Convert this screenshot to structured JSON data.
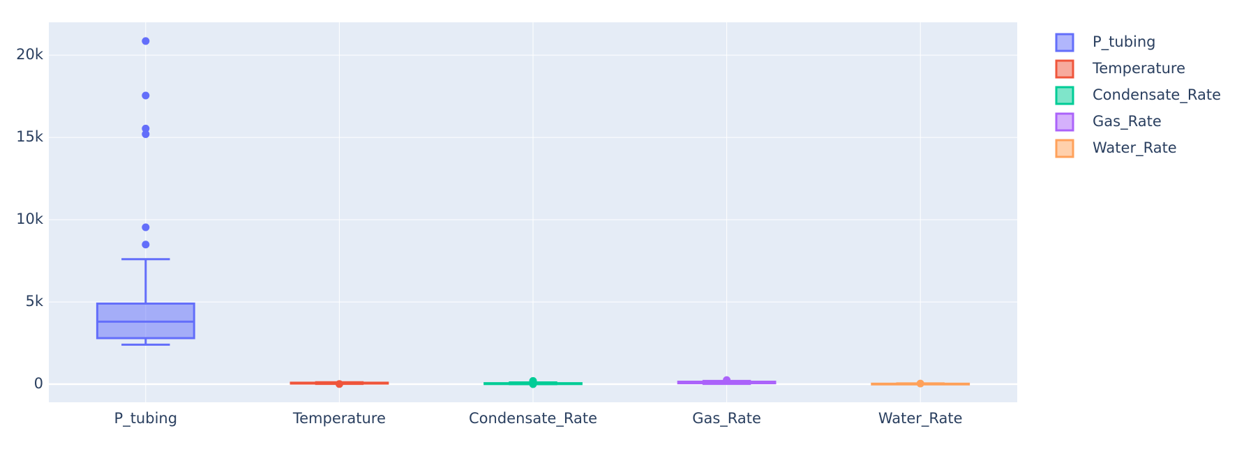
{
  "chart_data": {
    "type": "box",
    "categories": [
      "P_tubing",
      "Temperature",
      "Condensate_Rate",
      "Gas_Rate",
      "Water_Rate"
    ],
    "series": [
      {
        "name": "P_tubing",
        "color": "#636efa",
        "lowerfence": 2400,
        "q1": 2800,
        "median": 3800,
        "q3": 4900,
        "upperfence": 7600,
        "outliers": [
          20860,
          17550,
          15540,
          15200,
          9540,
          8490
        ]
      },
      {
        "name": "Temperature",
        "color": "#EF553B",
        "lowerfence": 20,
        "q1": 40,
        "median": 60,
        "q3": 90,
        "upperfence": 120,
        "outliers": [
          10
        ]
      },
      {
        "name": "Condensate_Rate",
        "color": "#00cc96",
        "lowerfence": 0,
        "q1": 10,
        "median": 30,
        "q3": 60,
        "upperfence": 110,
        "outliers": [
          200,
          0
        ]
      },
      {
        "name": "Gas_Rate",
        "color": "#ab63fa",
        "lowerfence": 20,
        "q1": 60,
        "median": 100,
        "q3": 150,
        "upperfence": 200,
        "outliers": [
          250
        ]
      },
      {
        "name": "Water_Rate",
        "color": "#FFA15A",
        "lowerfence": 0,
        "q1": 5,
        "median": 15,
        "q3": 30,
        "upperfence": 50,
        "outliers": [
          40
        ]
      }
    ],
    "ylim": [
      -1100,
      22000
    ],
    "yticks": [
      0,
      {
        "value": 5000,
        "label": "5k"
      },
      {
        "value": 10000,
        "label": "10k"
      },
      {
        "value": 15000,
        "label": "15k"
      },
      {
        "value": 20000,
        "label": "20k"
      }
    ],
    "grid": true,
    "legend": "right"
  }
}
